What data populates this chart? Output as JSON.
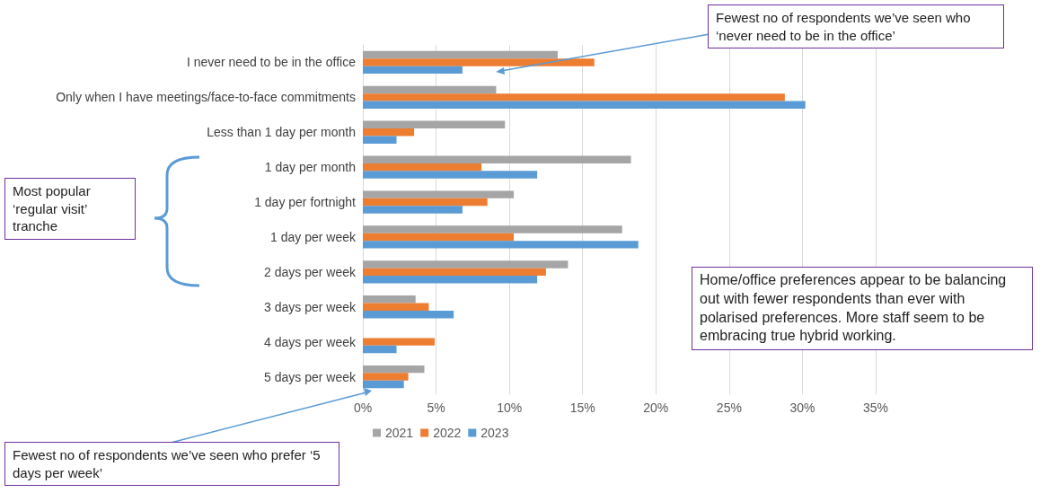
{
  "chart_data": {
    "type": "bar",
    "orientation": "horizontal",
    "categories": [
      "I never need to be in the office",
      "Only when I have meetings/face-to-face commitments",
      "Less than 1 day per month",
      "1 day per month",
      "1 day per fortnight",
      "1 day per week",
      "2 days per week",
      "3 days per week",
      "4 days per week",
      "5 days per week"
    ],
    "series": [
      {
        "name": "2021",
        "color": "#a5a5a5",
        "values": [
          13.3,
          9.1,
          9.7,
          18.3,
          10.3,
          17.7,
          14.0,
          3.6,
          0,
          4.2
        ]
      },
      {
        "name": "2022",
        "color": "#ed7d31",
        "values": [
          15.8,
          28.8,
          3.5,
          8.1,
          8.5,
          10.3,
          12.5,
          4.5,
          4.9,
          3.1
        ]
      },
      {
        "name": "2023",
        "color": "#5b9bd5",
        "values": [
          6.8,
          30.2,
          2.3,
          11.9,
          6.8,
          18.8,
          11.9,
          6.2,
          2.3,
          2.8
        ]
      }
    ],
    "xlim": [
      0,
      35
    ],
    "xticks": [
      {
        "value": 0,
        "label": "0%"
      },
      {
        "value": 5,
        "label": "5%"
      },
      {
        "value": 10,
        "label": "10%"
      },
      {
        "value": 15,
        "label": "15%"
      },
      {
        "value": 20,
        "label": "20%"
      },
      {
        "value": 25,
        "label": "25%"
      },
      {
        "value": 30,
        "label": "30%"
      },
      {
        "value": 35,
        "label": "35%"
      }
    ],
    "grid": "x",
    "legend": "bottom",
    "annotations": [
      "Fewest no of respondents we’ve seen who ‘never need to be in the office’",
      "Most popular ‘regular visit’ tranche",
      "Home/office preferences appear to be balancing out with fewer respondents than ever with polarised preferences. More staff seem to be embracing true hybrid working.",
      "Fewest no of respondents we’ve seen who prefer ‘5 days per week’"
    ]
  }
}
